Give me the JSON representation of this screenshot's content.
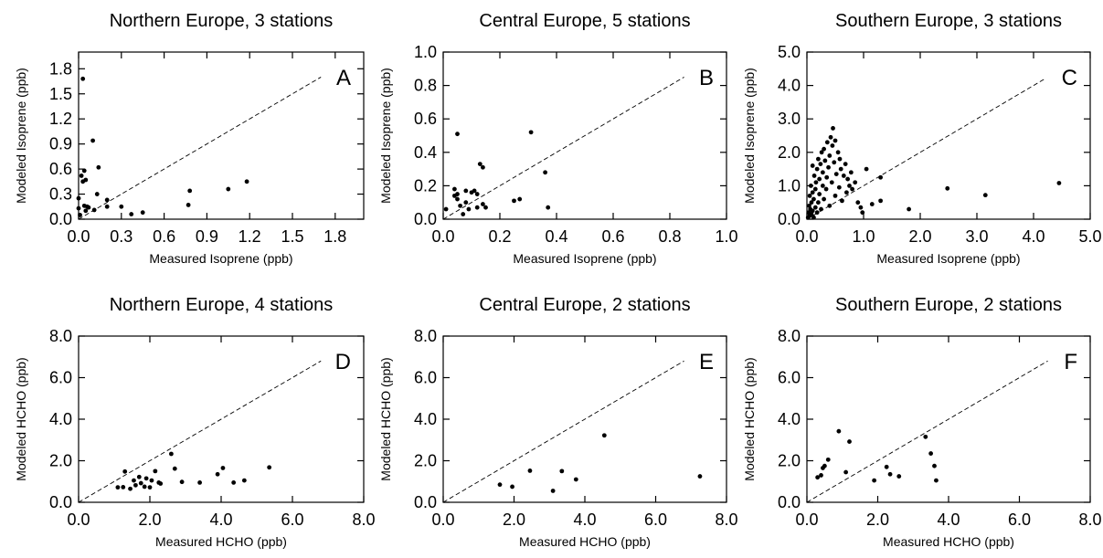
{
  "chart_data": [
    {
      "type": "scatter",
      "panel": "A",
      "title": "Northern Europe, 3 stations",
      "xlabel": "Measured Isoprene (ppb)",
      "ylabel": "Modeled Isoprene (ppb)",
      "xlim": [
        0,
        2.0
      ],
      "ylim": [
        0,
        2.0
      ],
      "xticks": [
        "0.0",
        "0.3",
        "0.6",
        "0.9",
        "1.2",
        "1.5",
        "1.8"
      ],
      "yticks": [
        "0.0",
        "0.3",
        "0.6",
        "0.9",
        "1.2",
        "1.5",
        "1.8"
      ],
      "xtick_values": [
        0,
        0.3,
        0.6,
        0.9,
        1.2,
        1.5,
        1.8
      ],
      "ytick_values": [
        0,
        0.3,
        0.6,
        0.9,
        1.2,
        1.5,
        1.8
      ],
      "one_to_one_line": [
        0,
        1.7
      ],
      "points": [
        [
          0.0,
          0.25
        ],
        [
          0.0,
          0.13
        ],
        [
          0.01,
          0.05
        ],
        [
          0.02,
          0.52
        ],
        [
          0.03,
          0.45
        ],
        [
          0.03,
          1.68
        ],
        [
          0.04,
          0.16
        ],
        [
          0.04,
          0.58
        ],
        [
          0.05,
          0.47
        ],
        [
          0.05,
          0.1
        ],
        [
          0.06,
          0.15
        ],
        [
          0.07,
          0.14
        ],
        [
          0.1,
          0.94
        ],
        [
          0.11,
          0.11
        ],
        [
          0.13,
          0.3
        ],
        [
          0.14,
          0.62
        ],
        [
          0.2,
          0.23
        ],
        [
          0.2,
          0.15
        ],
        [
          0.3,
          0.15
        ],
        [
          0.37,
          0.06
        ],
        [
          0.45,
          0.08
        ],
        [
          0.77,
          0.17
        ],
        [
          0.78,
          0.34
        ],
        [
          1.05,
          0.36
        ],
        [
          1.18,
          0.45
        ]
      ]
    },
    {
      "type": "scatter",
      "panel": "B",
      "title": "Central Europe, 5 stations",
      "xlabel": "Measured Isoprene (ppb)",
      "ylabel": "Modeled Isoprene (ppb)",
      "xlim": [
        0,
        1.0
      ],
      "ylim": [
        0,
        1.0
      ],
      "xticks": [
        "0.0",
        "0.2",
        "0.4",
        "0.6",
        "0.8",
        "1.0"
      ],
      "yticks": [
        "0.0",
        "0.2",
        "0.4",
        "0.6",
        "0.8",
        "1.0"
      ],
      "xtick_values": [
        0,
        0.2,
        0.4,
        0.6,
        0.8,
        1.0
      ],
      "ytick_values": [
        0,
        0.2,
        0.4,
        0.6,
        0.8,
        1.0
      ],
      "one_to_one_line": [
        0,
        0.85
      ],
      "points": [
        [
          0.01,
          0.06
        ],
        [
          0.04,
          0.14
        ],
        [
          0.04,
          0.18
        ],
        [
          0.05,
          0.15
        ],
        [
          0.05,
          0.12
        ],
        [
          0.05,
          0.51
        ],
        [
          0.06,
          0.08
        ],
        [
          0.07,
          0.03
        ],
        [
          0.08,
          0.1
        ],
        [
          0.08,
          0.17
        ],
        [
          0.09,
          0.06
        ],
        [
          0.1,
          0.16
        ],
        [
          0.11,
          0.17
        ],
        [
          0.12,
          0.15
        ],
        [
          0.12,
          0.07
        ],
        [
          0.13,
          0.33
        ],
        [
          0.14,
          0.31
        ],
        [
          0.14,
          0.09
        ],
        [
          0.15,
          0.07
        ],
        [
          0.25,
          0.11
        ],
        [
          0.27,
          0.12
        ],
        [
          0.31,
          0.52
        ],
        [
          0.36,
          0.28
        ],
        [
          0.37,
          0.07
        ]
      ]
    },
    {
      "type": "scatter",
      "panel": "C",
      "title": "Southern Europe, 3 stations",
      "xlabel": "Measured Isoprene (ppb)",
      "ylabel": "Modeled Isoprene (ppb)",
      "xlim": [
        0,
        5.0
      ],
      "ylim": [
        0,
        5.0
      ],
      "xticks": [
        "0.0",
        "1.0",
        "2.0",
        "3.0",
        "4.0",
        "5.0"
      ],
      "yticks": [
        "0.0",
        "1.0",
        "2.0",
        "3.0",
        "4.0",
        "5.0"
      ],
      "xtick_values": [
        0,
        1,
        2,
        3,
        4,
        5
      ],
      "ytick_values": [
        0,
        1,
        2,
        3,
        4,
        5
      ],
      "one_to_one_line": [
        0,
        4.2
      ],
      "points": [
        [
          0.02,
          0.05
        ],
        [
          0.03,
          0.2
        ],
        [
          0.04,
          0.4
        ],
        [
          0.05,
          0.1
        ],
        [
          0.05,
          0.7
        ],
        [
          0.06,
          0.3
        ],
        [
          0.07,
          1.0
        ],
        [
          0.08,
          0.15
        ],
        [
          0.08,
          0.5
        ],
        [
          0.1,
          0.25
        ],
        [
          0.1,
          0.8
        ],
        [
          0.1,
          1.6
        ],
        [
          0.12,
          0.05
        ],
        [
          0.12,
          0.6
        ],
        [
          0.13,
          1.3
        ],
        [
          0.15,
          0.35
        ],
        [
          0.15,
          0.9
        ],
        [
          0.16,
          1.1
        ],
        [
          0.18,
          0.2
        ],
        [
          0.18,
          1.5
        ],
        [
          0.2,
          0.5
        ],
        [
          0.2,
          1.8
        ],
        [
          0.22,
          0.75
        ],
        [
          0.22,
          1.2
        ],
        [
          0.24,
          1.65
        ],
        [
          0.25,
          0.3
        ],
        [
          0.26,
          2.0
        ],
        [
          0.28,
          1.0
        ],
        [
          0.28,
          1.4
        ],
        [
          0.3,
          0.6
        ],
        [
          0.3,
          2.1
        ],
        [
          0.32,
          1.75
        ],
        [
          0.34,
          0.9
        ],
        [
          0.35,
          1.25
        ],
        [
          0.36,
          2.3
        ],
        [
          0.38,
          1.55
        ],
        [
          0.4,
          0.4
        ],
        [
          0.4,
          1.9
        ],
        [
          0.42,
          2.45
        ],
        [
          0.44,
          1.1
        ],
        [
          0.45,
          2.2
        ],
        [
          0.46,
          2.72
        ],
        [
          0.48,
          1.7
        ],
        [
          0.5,
          0.7
        ],
        [
          0.5,
          2.35
        ],
        [
          0.52,
          1.35
        ],
        [
          0.55,
          2.0
        ],
        [
          0.57,
          0.95
        ],
        [
          0.58,
          1.8
        ],
        [
          0.6,
          1.5
        ],
        [
          0.62,
          0.55
        ],
        [
          0.65,
          1.3
        ],
        [
          0.68,
          1.65
        ],
        [
          0.7,
          0.8
        ],
        [
          0.72,
          1.2
        ],
        [
          0.75,
          1.0
        ],
        [
          0.78,
          1.4
        ],
        [
          0.8,
          0.9
        ],
        [
          0.85,
          1.1
        ],
        [
          0.9,
          0.5
        ],
        [
          0.95,
          0.35
        ],
        [
          0.98,
          0.2
        ],
        [
          1.05,
          1.5
        ],
        [
          1.15,
          0.45
        ],
        [
          1.3,
          1.25
        ],
        [
          1.3,
          0.55
        ],
        [
          1.8,
          0.3
        ],
        [
          2.48,
          0.92
        ],
        [
          3.15,
          0.72
        ],
        [
          4.45,
          1.08
        ]
      ]
    },
    {
      "type": "scatter",
      "panel": "D",
      "title": "Northern Europe, 4 stations",
      "xlabel": "Measured HCHO (ppb)",
      "ylabel": "Modeled HCHO (ppb)",
      "xlim": [
        0,
        8.0
      ],
      "ylim": [
        0,
        8.0
      ],
      "xticks": [
        "0.0",
        "2.0",
        "4.0",
        "6.0",
        "8.0"
      ],
      "yticks": [
        "0.0",
        "2.0",
        "4.0",
        "6.0",
        "8.0"
      ],
      "xtick_values": [
        0,
        2,
        4,
        6,
        8
      ],
      "ytick_values": [
        0,
        2,
        4,
        6,
        8
      ],
      "one_to_one_line": [
        0,
        6.8
      ],
      "points": [
        [
          1.1,
          0.72
        ],
        [
          1.25,
          0.73
        ],
        [
          1.3,
          1.48
        ],
        [
          1.45,
          0.65
        ],
        [
          1.55,
          1.05
        ],
        [
          1.6,
          0.82
        ],
        [
          1.7,
          1.22
        ],
        [
          1.75,
          0.92
        ],
        [
          1.85,
          0.75
        ],
        [
          1.9,
          1.15
        ],
        [
          2.0,
          0.72
        ],
        [
          2.05,
          1.05
        ],
        [
          2.15,
          1.5
        ],
        [
          2.25,
          0.95
        ],
        [
          2.3,
          0.9
        ],
        [
          2.6,
          2.33
        ],
        [
          2.7,
          1.62
        ],
        [
          2.9,
          0.98
        ],
        [
          3.4,
          0.95
        ],
        [
          3.9,
          1.35
        ],
        [
          4.05,
          1.65
        ],
        [
          4.35,
          0.95
        ],
        [
          4.65,
          1.05
        ],
        [
          5.35,
          1.68
        ]
      ]
    },
    {
      "type": "scatter",
      "panel": "E",
      "title": "Central Europe, 2 stations",
      "xlabel": "Measured HCHO (ppb)",
      "ylabel": "Modeled HCHO (ppb)",
      "xlim": [
        0,
        8.0
      ],
      "ylim": [
        0,
        8.0
      ],
      "xticks": [
        "0.0",
        "2.0",
        "4.0",
        "6.0",
        "8.0"
      ],
      "yticks": [
        "0.0",
        "2.0",
        "4.0",
        "6.0",
        "8.0"
      ],
      "xtick_values": [
        0,
        2,
        4,
        6,
        8
      ],
      "ytick_values": [
        0,
        2,
        4,
        6,
        8
      ],
      "one_to_one_line": [
        0,
        6.8
      ],
      "points": [
        [
          1.6,
          0.85
        ],
        [
          1.95,
          0.75
        ],
        [
          2.45,
          1.52
        ],
        [
          3.1,
          0.55
        ],
        [
          3.35,
          1.5
        ],
        [
          3.75,
          1.1
        ],
        [
          4.55,
          3.22
        ],
        [
          7.25,
          1.25
        ]
      ]
    },
    {
      "type": "scatter",
      "panel": "F",
      "title": "Southern Europe, 2 stations",
      "xlabel": "Measured HCHO (ppb)",
      "ylabel": "Modeled HCHO (ppb)",
      "xlim": [
        0,
        8.0
      ],
      "ylim": [
        0,
        8.0
      ],
      "xticks": [
        "0.0",
        "2.0",
        "4.0",
        "6.0",
        "8.0"
      ],
      "yticks": [
        "0.0",
        "2.0",
        "4.0",
        "6.0",
        "8.0"
      ],
      "xtick_values": [
        0,
        2,
        4,
        6,
        8
      ],
      "ytick_values": [
        0,
        2,
        4,
        6,
        8
      ],
      "one_to_one_line": [
        0,
        6.8
      ],
      "points": [
        [
          0.3,
          1.2
        ],
        [
          0.4,
          1.3
        ],
        [
          0.45,
          1.65
        ],
        [
          0.5,
          1.75
        ],
        [
          0.6,
          2.05
        ],
        [
          0.9,
          3.42
        ],
        [
          1.1,
          1.45
        ],
        [
          1.2,
          2.92
        ],
        [
          1.9,
          1.05
        ],
        [
          2.25,
          1.7
        ],
        [
          2.35,
          1.35
        ],
        [
          2.6,
          1.25
        ],
        [
          3.35,
          3.15
        ],
        [
          3.5,
          2.35
        ],
        [
          3.6,
          1.75
        ],
        [
          3.65,
          1.05
        ]
      ]
    }
  ]
}
